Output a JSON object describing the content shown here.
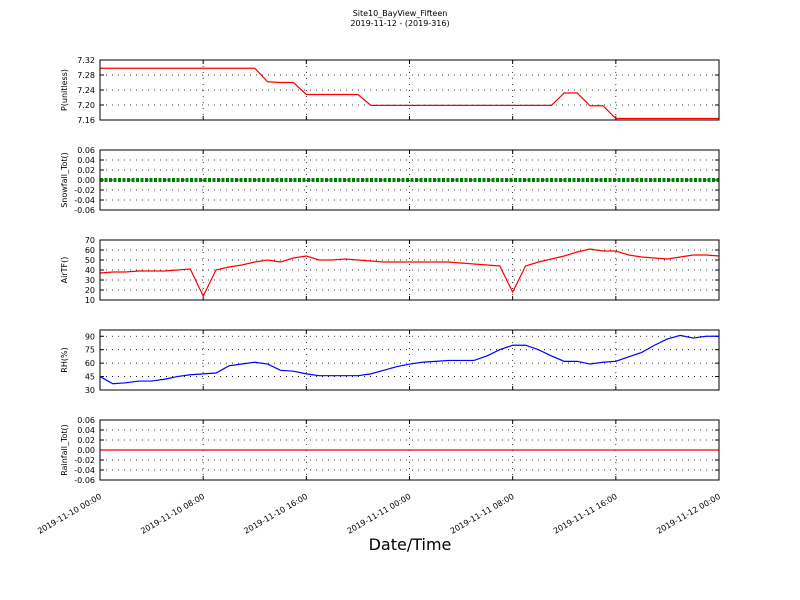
{
  "chart_data": {
    "type": "line",
    "title": "Site10_BayView_Fifteen",
    "subtitle": "2019-11-12 - (2019-316)",
    "xlabel": "Date/Time",
    "grid": true,
    "xlim": [
      "2019-11-10 00:00",
      "2019-11-12 00:00"
    ],
    "xticks": [
      "2019-11-10 00:00",
      "2019-11-10 08:00",
      "2019-11-10 16:00",
      "2019-11-11 00:00",
      "2019-11-11 08:00",
      "2019-11-11 16:00",
      "2019-11-12 00:00"
    ],
    "x": [
      "2019-11-10 00:00",
      "2019-11-10 01:00",
      "2019-11-10 02:00",
      "2019-11-10 03:00",
      "2019-11-10 04:00",
      "2019-11-10 05:00",
      "2019-11-10 06:00",
      "2019-11-10 07:00",
      "2019-11-10 08:00",
      "2019-11-10 09:00",
      "2019-11-10 10:00",
      "2019-11-10 11:00",
      "2019-11-10 12:00",
      "2019-11-10 13:00",
      "2019-11-10 14:00",
      "2019-11-10 15:00",
      "2019-11-10 16:00",
      "2019-11-10 17:00",
      "2019-11-10 18:00",
      "2019-11-10 19:00",
      "2019-11-10 20:00",
      "2019-11-10 21:00",
      "2019-11-10 22:00",
      "2019-11-10 23:00",
      "2019-11-11 00:00",
      "2019-11-11 01:00",
      "2019-11-11 02:00",
      "2019-11-11 03:00",
      "2019-11-11 04:00",
      "2019-11-11 05:00",
      "2019-11-11 06:00",
      "2019-11-11 07:00",
      "2019-11-11 08:00",
      "2019-11-11 09:00",
      "2019-11-11 10:00",
      "2019-11-11 11:00",
      "2019-11-11 12:00",
      "2019-11-11 13:00",
      "2019-11-11 14:00",
      "2019-11-11 15:00",
      "2019-11-11 16:00",
      "2019-11-11 17:00",
      "2019-11-11 18:00",
      "2019-11-11 19:00",
      "2019-11-11 20:00",
      "2019-11-11 21:00",
      "2019-11-11 22:00",
      "2019-11-11 23:00",
      "2019-11-12 00:00"
    ],
    "panels": [
      {
        "ylabel": "P(unitless)",
        "ylim": [
          7.16,
          7.32
        ],
        "yticks": [
          7.16,
          {
            "value": 7.2,
            "label": "7.20"
          },
          7.24,
          7.28,
          7.32
        ],
        "series": [
          {
            "color": "#ff0000",
            "style": "line",
            "values": [
              7.298,
              7.298,
              7.298,
              7.298,
              7.298,
              7.298,
              7.298,
              7.298,
              7.298,
              7.298,
              7.298,
              7.298,
              7.298,
              7.262,
              7.26,
              7.26,
              7.228,
              7.228,
              7.228,
              7.228,
              7.228,
              7.199,
              7.199,
              7.199,
              7.199,
              7.199,
              7.199,
              7.199,
              7.199,
              7.199,
              7.199,
              7.199,
              7.199,
              7.199,
              7.199,
              7.199,
              7.232,
              7.232,
              7.198,
              7.198,
              7.164,
              7.164,
              7.164,
              7.164,
              7.164,
              7.164,
              7.164,
              7.164,
              7.164
            ]
          }
        ]
      },
      {
        "ylabel": "Snowfall_Tot()",
        "ylim": [
          -0.06,
          0.06
        ],
        "yticks": [
          -0.06,
          -0.04,
          -0.02,
          {
            "value": 0,
            "label": "0.00"
          },
          0.02,
          0.04,
          0.06
        ],
        "series": [
          {
            "color": "#008000",
            "style": "dots",
            "values": [
              0,
              0,
              0,
              0,
              0,
              0,
              0,
              0,
              0,
              0,
              0,
              0,
              0,
              0,
              0,
              0,
              0,
              0,
              0,
              0,
              0,
              0,
              0,
              0,
              0,
              0,
              0,
              0,
              0,
              0,
              0,
              0,
              0,
              0,
              0,
              0,
              0,
              0,
              0,
              0,
              0,
              0,
              0,
              0,
              0,
              0,
              0,
              0,
              0
            ]
          }
        ]
      },
      {
        "ylabel": "AirTF()",
        "ylim": [
          10,
          70
        ],
        "yticks": [
          10,
          20,
          30,
          40,
          50,
          60,
          70
        ],
        "series": [
          {
            "color": "#ff0000",
            "style": "line",
            "values": [
              37,
              38,
              38,
              39,
              39,
              39,
              40,
              41,
              14,
              40,
              43,
              45,
              48,
              50,
              48,
              52,
              54,
              50,
              50,
              51,
              50,
              49,
              48,
              48,
              48,
              48,
              48,
              48,
              47,
              46,
              45,
              44,
              18,
              44,
              48,
              51,
              54,
              58,
              61,
              59,
              59,
              55,
              53,
              52,
              51,
              53,
              55,
              55,
              54
            ]
          }
        ]
      },
      {
        "ylabel": "RH(%)",
        "ylim": [
          30,
          97
        ],
        "yticks": [
          30,
          45,
          60,
          75,
          90
        ],
        "series": [
          {
            "color": "#0000ff",
            "style": "line",
            "values": [
              45,
              37,
              38,
              40,
              40,
              42,
              45,
              47,
              48,
              49,
              57,
              59,
              61,
              59,
              52,
              51,
              48,
              46,
              46,
              46,
              46,
              48,
              52,
              56,
              59,
              61,
              62,
              63,
              63,
              63,
              68,
              75,
              80,
              80,
              75,
              68,
              62,
              62,
              59,
              61,
              62,
              67,
              72,
              80,
              87,
              91,
              88,
              90,
              90
            ]
          }
        ]
      },
      {
        "ylabel": "Rainfall_Tot()",
        "ylim": [
          -0.06,
          0.06
        ],
        "yticks": [
          -0.06,
          -0.04,
          -0.02,
          {
            "value": 0,
            "label": "0.00"
          },
          0.02,
          0.04,
          0.06
        ],
        "series": [
          {
            "color": "#ff0000",
            "style": "line",
            "values": [
              0,
              0,
              0,
              0,
              0,
              0,
              0,
              0,
              0,
              0,
              0,
              0,
              0,
              0,
              0,
              0,
              0,
              0,
              0,
              0,
              0,
              0,
              0,
              0,
              0,
              0,
              0,
              0,
              0,
              0,
              0,
              0,
              0,
              0,
              0,
              0,
              0,
              0,
              0,
              0,
              0,
              0,
              0,
              0,
              0,
              0,
              0,
              0,
              0
            ]
          }
        ]
      }
    ]
  }
}
